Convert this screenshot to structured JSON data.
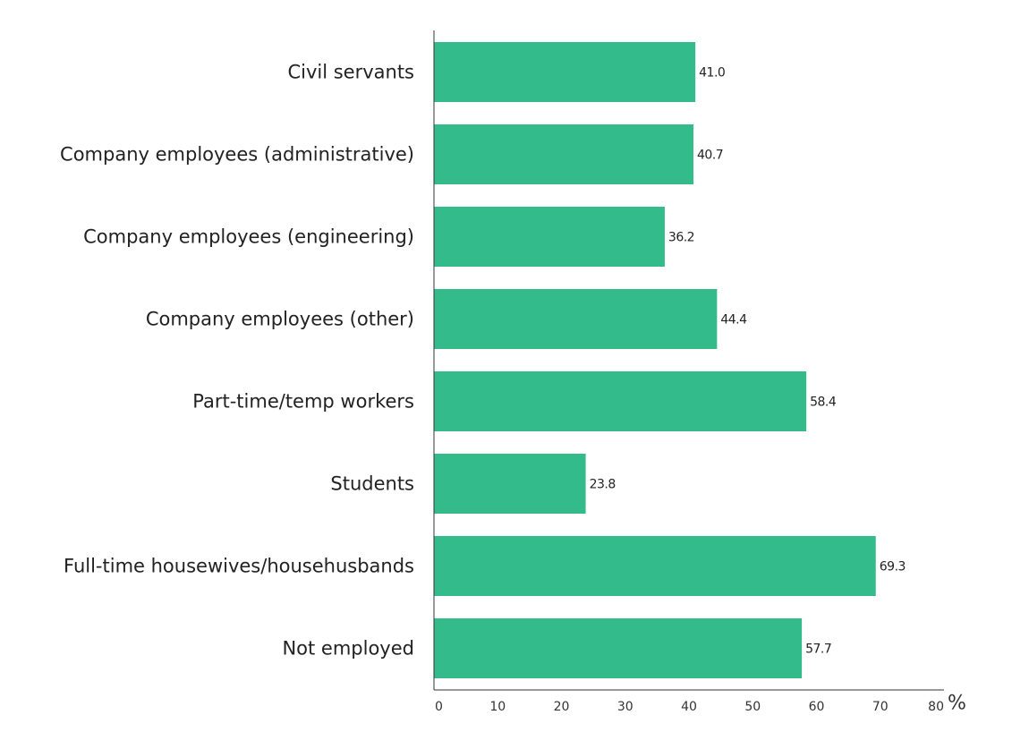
{
  "chart_data": {
    "type": "bar",
    "orientation": "horizontal",
    "categories": [
      "Civil servants",
      "Company employees (administrative)",
      "Company employees (engineering)",
      "Company employees (other)",
      "Part-time/temp workers",
      "Students",
      "Full-time housewives/househusbands",
      "Not employed"
    ],
    "values": [
      41.0,
      40.7,
      36.2,
      44.4,
      58.4,
      23.8,
      69.3,
      57.7
    ],
    "value_labels": [
      "41.0",
      "40.7",
      "36.2",
      "44.4",
      "58.4",
      "23.8",
      "69.3",
      "57.7"
    ],
    "xlim": [
      0,
      80
    ],
    "xticks": [
      "0",
      "10",
      "20",
      "30",
      "40",
      "50",
      "60",
      "70",
      "80"
    ],
    "x_unit": "%",
    "title": "",
    "xlabel": "",
    "ylabel": "",
    "grid": false,
    "bar_color": "#34BB8B"
  }
}
